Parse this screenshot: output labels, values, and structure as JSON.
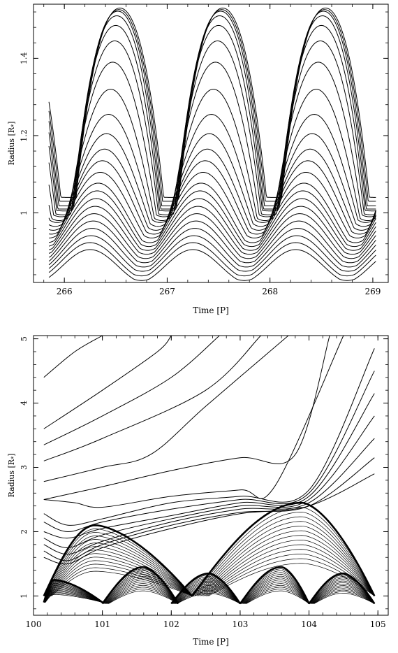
{
  "chart_data": [
    {
      "type": "line",
      "title": "",
      "xlabel": "Time [P]",
      "ylabel": "Radius [R",
      "ylabel_subscript": "*",
      "ylabel_close": "]",
      "xlim": [
        265.7,
        269.15
      ],
      "ylim": [
        0.82,
        1.54
      ],
      "xticks": [
        266,
        267,
        268,
        269
      ],
      "yticks": [
        1.0,
        1.2,
        1.4
      ],
      "ytick_labels": [
        "1",
        "1.2",
        "1.4"
      ],
      "grid": false,
      "legend": "none",
      "period": 1.0,
      "x_start": 265.85,
      "x_end": 269.03,
      "series_count": 23,
      "series": [
        {
          "mean": 0.865,
          "amplitude": 0.04,
          "maximum_phase": 266.25
        },
        {
          "mean": 0.88,
          "amplitude": 0.043,
          "maximum_phase": 266.25
        },
        {
          "mean": 0.895,
          "amplitude": 0.046,
          "maximum_phase": 266.26
        },
        {
          "mean": 0.91,
          "amplitude": 0.05,
          "maximum_phase": 266.27
        },
        {
          "mean": 0.925,
          "amplitude": 0.054,
          "maximum_phase": 266.28
        },
        {
          "mean": 0.94,
          "amplitude": 0.058,
          "maximum_phase": 266.29
        },
        {
          "mean": 0.955,
          "amplitude": 0.062,
          "maximum_phase": 266.3
        },
        {
          "mean": 0.97,
          "amplitude": 0.067,
          "maximum_phase": 266.31
        },
        {
          "mean": 0.985,
          "amplitude": 0.072,
          "maximum_phase": 266.32
        },
        {
          "mean": 1.0,
          "amplitude": 0.077,
          "maximum_phase": 266.33
        },
        {
          "mean": 1.02,
          "amplitude": 0.085,
          "maximum_phase": 266.35
        },
        {
          "mean": 1.04,
          "amplitude": 0.095,
          "maximum_phase": 266.37
        },
        {
          "mean": 1.06,
          "amplitude": 0.105,
          "maximum_phase": 266.39
        },
        {
          "mean": 1.085,
          "amplitude": 0.12,
          "maximum_phase": 266.41
        },
        {
          "mean": 1.115,
          "amplitude": 0.14,
          "maximum_phase": 266.43
        },
        {
          "mean": 1.15,
          "amplitude": 0.17,
          "maximum_phase": 266.45
        },
        {
          "mean": 1.19,
          "amplitude": 0.2,
          "maximum_phase": 266.47
        },
        {
          "mean": 1.22,
          "amplitude": 0.225,
          "maximum_phase": 266.49
        },
        {
          "mean": 1.245,
          "amplitude": 0.24,
          "maximum_phase": 266.5
        },
        {
          "mean": 1.26,
          "amplitude": 0.25,
          "maximum_phase": 266.51
        },
        {
          "mean": 1.27,
          "amplitude": 0.252,
          "maximum_phase": 266.52
        },
        {
          "mean": 1.278,
          "amplitude": 0.248,
          "maximum_phase": 266.53
        },
        {
          "mean": 1.285,
          "amplitude": 0.245,
          "maximum_phase": 266.54
        }
      ]
    },
    {
      "type": "line",
      "title": "",
      "xlabel": "Time [P]",
      "ylabel": "Radius [R",
      "ylabel_subscript": "*",
      "ylabel_close": "]",
      "xlim": [
        100.0,
        105.15
      ],
      "ylim": [
        0.7,
        5.05
      ],
      "xticks": [
        100,
        101,
        102,
        103,
        104,
        105
      ],
      "yticks": [
        1,
        2,
        3,
        4,
        5
      ],
      "ytick_labels": [
        "1",
        "2",
        "3",
        "4",
        "5"
      ],
      "grid": false,
      "legend": "none",
      "x_start": 100.15,
      "x_end": 104.95,
      "outer_series": [
        {
          "x": [
            100.15,
            100.6,
            101.0
          ],
          "y": [
            4.4,
            4.8,
            5.05
          ]
        },
        {
          "x": [
            100.15,
            101.0,
            101.8,
            102.0
          ],
          "y": [
            3.6,
            4.2,
            4.8,
            5.05
          ]
        },
        {
          "x": [
            100.15,
            101.0,
            102.0,
            102.7
          ],
          "y": [
            3.35,
            3.8,
            4.4,
            5.05
          ]
        },
        {
          "x": [
            100.15,
            101.0,
            102.5,
            103.3
          ],
          "y": [
            3.1,
            3.45,
            4.2,
            5.05
          ]
        },
        {
          "x": [
            100.15,
            101.0,
            101.7,
            102.5,
            103.7
          ],
          "y": [
            2.78,
            3.0,
            3.2,
            3.95,
            5.05
          ]
        },
        {
          "x": [
            100.15,
            101.0,
            102.0,
            103.0,
            103.8,
            104.3
          ],
          "y": [
            2.5,
            2.7,
            2.95,
            3.15,
            3.2,
            5.05
          ]
        },
        {
          "x": [
            100.15,
            100.6,
            101.0,
            102.0,
            103.0,
            103.5,
            104.5
          ],
          "y": [
            2.5,
            2.45,
            2.38,
            2.55,
            2.65,
            2.7,
            5.05
          ]
        },
        {
          "x": [
            100.15,
            100.5,
            101.0,
            102.0,
            103.0,
            104.0,
            104.95
          ],
          "y": [
            2.28,
            2.1,
            2.2,
            2.45,
            2.55,
            2.65,
            4.85
          ]
        },
        {
          "x": [
            100.15,
            100.5,
            101.0,
            102.0,
            103.0,
            104.0,
            104.95
          ],
          "y": [
            2.15,
            2.0,
            2.15,
            2.35,
            2.5,
            2.6,
            4.5
          ]
        },
        {
          "x": [
            100.15,
            100.5,
            101.0,
            102.0,
            103.0,
            104.0,
            104.95
          ],
          "y": [
            2.0,
            1.9,
            2.05,
            2.25,
            2.45,
            2.55,
            4.15
          ]
        },
        {
          "x": [
            100.15,
            100.5,
            101.0,
            102.0,
            103.0,
            104.0,
            104.95
          ],
          "y": [
            1.9,
            1.75,
            1.95,
            2.2,
            2.4,
            2.5,
            3.8
          ]
        },
        {
          "x": [
            100.15,
            100.5,
            101.0,
            102.0,
            103.0,
            104.0,
            104.95
          ],
          "y": [
            1.8,
            1.65,
            1.85,
            2.15,
            2.35,
            2.45,
            3.45
          ]
        },
        {
          "x": [
            100.15,
            100.5,
            101.0,
            102.0,
            103.0,
            104.0,
            104.95
          ],
          "y": [
            1.7,
            1.55,
            1.8,
            2.1,
            2.3,
            2.4,
            3.15
          ]
        },
        {
          "x": [
            100.15,
            100.5,
            101.0,
            102.0,
            103.0,
            104.0,
            104.95
          ],
          "y": [
            1.6,
            1.5,
            1.75,
            2.05,
            2.28,
            2.4,
            2.9
          ]
        }
      ],
      "shock_fronts": [
        {
          "x_start": 100.15,
          "x_end": 102.3,
          "peak_x": 100.9,
          "peak_y": 2.1,
          "base": 1.0
        },
        {
          "x_start": 102.3,
          "x_end": 104.95,
          "peak_x": 103.9,
          "peak_y": 2.45,
          "base": 1.0
        },
        {
          "x_start": 100.15,
          "x_end": 101.0,
          "peak_x": 100.3,
          "peak_y": 1.25,
          "base": 0.9
        },
        {
          "x_start": 101.0,
          "x_end": 102.1,
          "peak_x": 101.6,
          "peak_y": 1.45,
          "base": 0.88
        },
        {
          "x_start": 102.0,
          "x_end": 103.0,
          "peak_x": 102.55,
          "peak_y": 1.35,
          "base": 0.88
        },
        {
          "x_start": 103.0,
          "x_end": 104.0,
          "peak_x": 103.6,
          "peak_y": 1.45,
          "base": 0.88
        },
        {
          "x_start": 104.0,
          "x_end": 104.95,
          "peak_x": 104.5,
          "peak_y": 1.35,
          "base": 0.88
        }
      ],
      "inner_layers_per_front": 14
    }
  ]
}
